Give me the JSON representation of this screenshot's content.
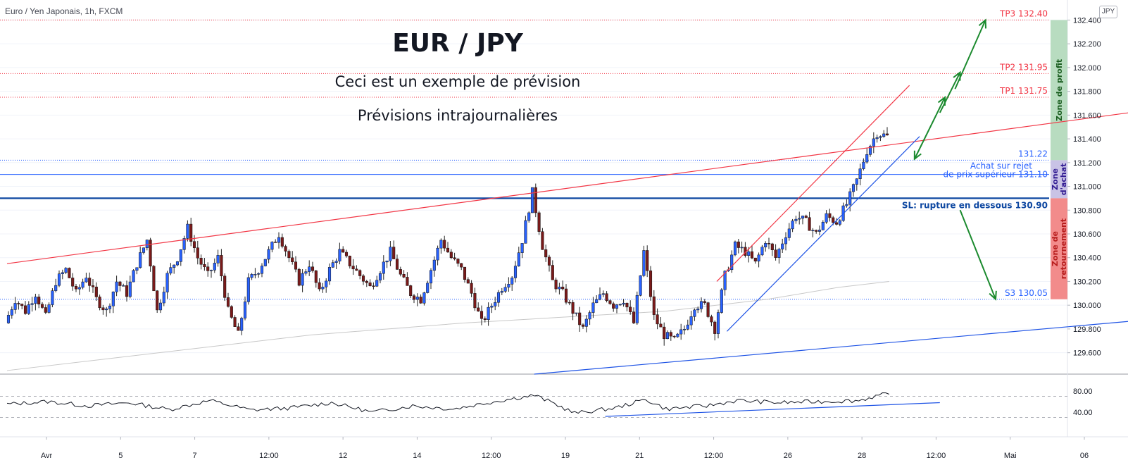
{
  "header": {
    "symbol_line": "Euro / Yen Japonais, 1h, FXCM",
    "currency_badge": "JPY"
  },
  "titles": {
    "main": "EUR / JPY",
    "line1": "Ceci est un exemple de prévision",
    "line2": "Prévisions intrajournalières"
  },
  "chart_data": {
    "type": "candlestick",
    "instrument": "EUR/JPY",
    "timeframe": "1h",
    "ylim": [
      129.42,
      132.45
    ],
    "y_ticks": [
      "132.400",
      "132.200",
      "132.000",
      "131.800",
      "131.600",
      "131.400",
      "131.200",
      "131.000",
      "130.800",
      "130.600",
      "130.400",
      "130.200",
      "130.000",
      "129.800",
      "129.600"
    ],
    "y_tick_values": [
      132.4,
      132.2,
      132.0,
      131.8,
      131.6,
      131.4,
      131.2,
      131.0,
      130.8,
      130.6,
      130.4,
      130.2,
      130.0,
      129.8,
      129.6
    ],
    "x_ticks": [
      "Avr",
      "5",
      "7",
      "12:00",
      "12",
      "14",
      "12:00",
      "19",
      "21",
      "12:00",
      "26",
      "28",
      "12:00",
      "Mai",
      "06"
    ],
    "price_path": [
      [
        0,
        129.85
      ],
      [
        1,
        130.05
      ],
      [
        2,
        129.95
      ],
      [
        3,
        130.1
      ],
      [
        4,
        129.9
      ],
      [
        5,
        130.2
      ],
      [
        6,
        130.3
      ],
      [
        7,
        130.1
      ],
      [
        8,
        130.25
      ],
      [
        9,
        130.05
      ],
      [
        10,
        129.95
      ],
      [
        11,
        130.2
      ],
      [
        12,
        130.1
      ],
      [
        13,
        130.35
      ],
      [
        14,
        130.55
      ],
      [
        15,
        129.95
      ],
      [
        16,
        130.25
      ],
      [
        17,
        130.4
      ],
      [
        18,
        130.65
      ],
      [
        19,
        130.4
      ],
      [
        20,
        130.25
      ],
      [
        21,
        130.4
      ],
      [
        22,
        129.95
      ],
      [
        23,
        129.75
      ],
      [
        24,
        130.2
      ],
      [
        25,
        130.3
      ],
      [
        26,
        130.45
      ],
      [
        27,
        130.6
      ],
      [
        28,
        130.4
      ],
      [
        29,
        130.2
      ],
      [
        30,
        130.35
      ],
      [
        31,
        130.1
      ],
      [
        32,
        130.3
      ],
      [
        33,
        130.45
      ],
      [
        34,
        130.35
      ],
      [
        35,
        130.25
      ],
      [
        36,
        130.15
      ],
      [
        37,
        130.3
      ],
      [
        38,
        130.45
      ],
      [
        39,
        130.25
      ],
      [
        40,
        130.1
      ],
      [
        41,
        130.05
      ],
      [
        42,
        130.3
      ],
      [
        43,
        130.55
      ],
      [
        44,
        130.4
      ],
      [
        45,
        130.3
      ],
      [
        46,
        130.1
      ],
      [
        47,
        129.85
      ],
      [
        48,
        130.0
      ],
      [
        49,
        130.15
      ],
      [
        50,
        130.25
      ],
      [
        51,
        130.55
      ],
      [
        52,
        130.95
      ],
      [
        53,
        130.5
      ],
      [
        54,
        130.2
      ],
      [
        55,
        130.1
      ],
      [
        56,
        129.95
      ],
      [
        57,
        129.8
      ],
      [
        58,
        130.0
      ],
      [
        59,
        130.1
      ],
      [
        60,
        130.0
      ],
      [
        61,
        130.05
      ],
      [
        62,
        129.85
      ],
      [
        63,
        130.45
      ],
      [
        64,
        129.9
      ],
      [
        65,
        129.75
      ],
      [
        66,
        129.7
      ],
      [
        67,
        129.8
      ],
      [
        68,
        130.0
      ],
      [
        69,
        130.0
      ],
      [
        70,
        129.8
      ],
      [
        71,
        130.25
      ],
      [
        72,
        130.5
      ],
      [
        73,
        130.45
      ],
      [
        74,
        130.35
      ],
      [
        75,
        130.55
      ],
      [
        76,
        130.4
      ],
      [
        77,
        130.6
      ],
      [
        78,
        130.75
      ],
      [
        79,
        130.7
      ],
      [
        80,
        130.6
      ],
      [
        81,
        130.75
      ],
      [
        82,
        130.7
      ],
      [
        83,
        130.85
      ],
      [
        84,
        131.05
      ],
      [
        85,
        131.3
      ],
      [
        86,
        131.45
      ],
      [
        87,
        131.42
      ]
    ],
    "last_bar_index": 87,
    "bars_total": 122,
    "moving_average": [
      [
        0,
        129.45
      ],
      [
        15,
        129.6
      ],
      [
        30,
        129.75
      ],
      [
        45,
        129.85
      ],
      [
        55,
        129.9
      ],
      [
        65,
        129.95
      ],
      [
        75,
        130.05
      ],
      [
        82,
        130.15
      ],
      [
        87,
        130.2
      ]
    ],
    "levels": [
      {
        "label": "TP3 132.40",
        "value": 132.4,
        "style": "dotted",
        "color": "#f23645"
      },
      {
        "label": "TP2 131.95",
        "value": 131.95,
        "style": "dotted",
        "color": "#f23645"
      },
      {
        "label": "TP1 131.75",
        "value": 131.75,
        "style": "dotted",
        "color": "#f23645"
      },
      {
        "label": "131.22",
        "value": 131.22,
        "style": "dotted",
        "color": "#2962ff"
      },
      {
        "label": "Achat sur rejet\nde prix supérieur 131.10",
        "value": 131.1,
        "style": "solid",
        "color": "#2962ff"
      },
      {
        "label": "SL: rupture en dessous 130.90",
        "value": 130.9,
        "style": "solid-bold",
        "color": "#0d47a1"
      },
      {
        "label": "S3 130.05",
        "value": 130.05,
        "style": "dotted",
        "color": "#2962ff"
      }
    ],
    "zones": [
      {
        "label": "Zone de profit",
        "from": 131.22,
        "to": 132.4,
        "color": "#b8dcc0",
        "text_color": "#1b5e20"
      },
      {
        "label": "Zone d'achat",
        "from": 130.9,
        "to": 131.22,
        "color": "#c9c3e6",
        "text_color": "#311b92"
      },
      {
        "label": "Zone de retournement",
        "from": 130.05,
        "to": 130.9,
        "color": "#f28b8b",
        "text_color": "#b71c1c"
      }
    ],
    "trendlines": [
      {
        "name": "resistance",
        "color": "#f23645",
        "from": [
          0,
          130.35
        ],
        "to": [
          122,
          131.75
        ]
      },
      {
        "name": "channel-top",
        "color": "#f23645",
        "from": [
          70,
          130.2
        ],
        "to": [
          89,
          131.85
        ]
      },
      {
        "name": "support-short",
        "color": "#1e53e5",
        "from": [
          71,
          129.78
        ],
        "to": [
          90,
          131.42
        ]
      },
      {
        "name": "support-long",
        "color": "#1e53e5",
        "from": [
          52,
          129.42
        ],
        "to": [
          122,
          129.95
        ]
      }
    ],
    "arrows": [
      {
        "color": "#1b8a2e",
        "from": [
          89.5,
          131.23
        ],
        "to": [
          92.5,
          131.75
        ]
      },
      {
        "color": "#1b8a2e",
        "from": [
          92.0,
          131.62
        ],
        "to": [
          94.0,
          131.96
        ]
      },
      {
        "color": "#1b8a2e",
        "from": [
          93.5,
          131.82
        ],
        "to": [
          96.5,
          132.4
        ]
      },
      {
        "color": "#1b8a2e",
        "from": [
          94.0,
          130.8
        ],
        "to": [
          97.5,
          130.05
        ]
      }
    ],
    "rsi": {
      "ylim": [
        20,
        100
      ],
      "y_ticks": [
        "80.00",
        "40.00"
      ],
      "y_tick_values": [
        80,
        40
      ],
      "bands": [
        70,
        30
      ],
      "values": [
        [
          0,
          55
        ],
        [
          4,
          60
        ],
        [
          8,
          52
        ],
        [
          12,
          58
        ],
        [
          16,
          45
        ],
        [
          20,
          62
        ],
        [
          24,
          44
        ],
        [
          28,
          48
        ],
        [
          32,
          58
        ],
        [
          36,
          40
        ],
        [
          40,
          52
        ],
        [
          44,
          46
        ],
        [
          48,
          60
        ],
        [
          52,
          72
        ],
        [
          54,
          56
        ],
        [
          56,
          38
        ],
        [
          60,
          48
        ],
        [
          63,
          64
        ],
        [
          65,
          46
        ],
        [
          69,
          52
        ],
        [
          72,
          62
        ],
        [
          76,
          58
        ],
        [
          80,
          60
        ],
        [
          84,
          62
        ],
        [
          86,
          72
        ],
        [
          87,
          74
        ]
      ],
      "trendline": {
        "from": [
          59,
          32
        ],
        "to": [
          92,
          58
        ]
      }
    }
  },
  "colors": {
    "up_candle": "#2962ff",
    "down_candle": "#7a1a1a",
    "grid": "#f0f3fa",
    "axis_text": "#131722"
  }
}
